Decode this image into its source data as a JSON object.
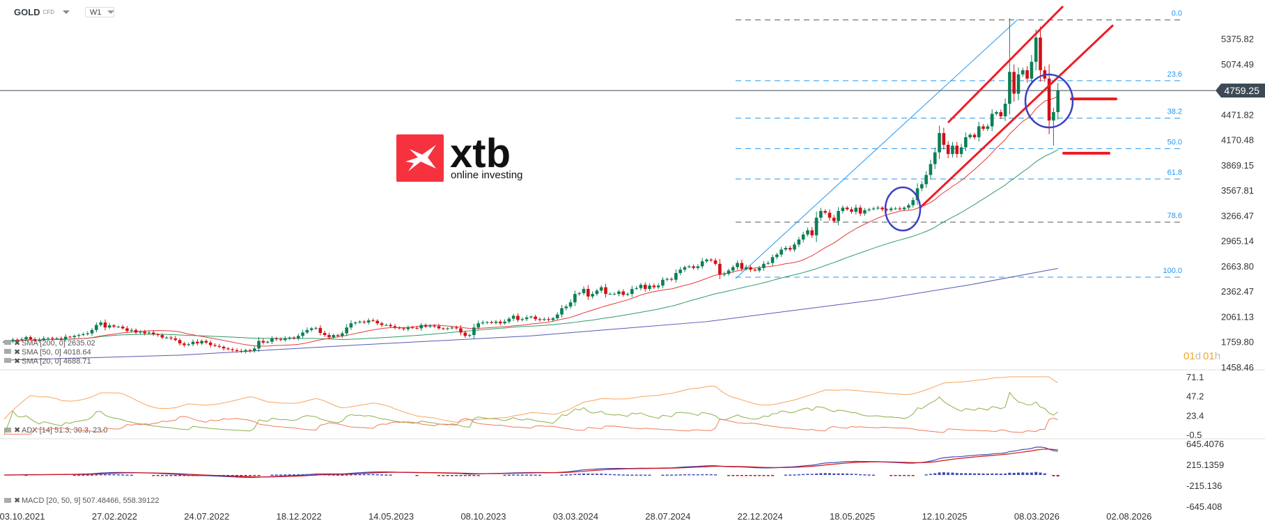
{
  "header": {
    "symbol": "GOLD",
    "instrument_type": "CFD",
    "timeframe": "W1"
  },
  "logo": {
    "brand": "xtb",
    "tagline": "online investing"
  },
  "countdown": {
    "days": "01",
    "d": "d",
    "hours": "01",
    "h": "h"
  },
  "colors": {
    "up": "#0b7f56",
    "down": "#d40f14",
    "sma20": "#e53935",
    "sma50": "#2e9a68",
    "sma200": "#5559b5",
    "fib": "#2196f3",
    "annotation_red": "#ee1c25",
    "annotation_blue": "#3b3fc4",
    "countdown": "#f5a623",
    "adx": "#f7a35c",
    "plus_di": "#8bb04a",
    "minus_di": "#f07a5a",
    "macd": "#3f4bb5",
    "signal": "#d40f14"
  },
  "chart_data": [
    {
      "type": "candlestick",
      "title": "GOLD",
      "timeframe": "W1",
      "x_tick_labels": [
        "03.10.2021",
        "27.02.2022",
        "24.07.2022",
        "18.12.2022",
        "14.05.2023",
        "08.10.2023",
        "03.03.2024",
        "28.07.2024",
        "22.12.2024",
        "18.05.2025",
        "12.10.2025",
        "08.03.2026",
        "02.08.2026"
      ],
      "y_tick_labels": [
        "5375.82",
        "5074.49",
        "4759.25",
        "4471.82",
        "4170.48",
        "3869.15",
        "3567.81",
        "3266.47",
        "2965.14",
        "2663.80",
        "2362.47",
        "2061.13",
        "1759.80",
        "1458.46"
      ],
      "ylim": [
        1458.46,
        5375.82
      ],
      "current_price": "4759.25",
      "weekly_close": [
        1760,
        1765,
        1785,
        1782,
        1790,
        1815,
        1790,
        1770,
        1785,
        1800,
        1805,
        1795,
        1800,
        1790,
        1820,
        1815,
        1830,
        1840,
        1850,
        1860,
        1900,
        1960,
        1990,
        1930,
        1955,
        1940,
        1940,
        1920,
        1890,
        1900,
        1870,
        1880,
        1860,
        1870,
        1850,
        1840,
        1810,
        1810,
        1800,
        1780,
        1740,
        1720,
        1730,
        1760,
        1740,
        1770,
        1750,
        1720,
        1710,
        1700,
        1680,
        1670,
        1660,
        1650,
        1640,
        1660,
        1650,
        1680,
        1770,
        1750,
        1760,
        1800,
        1790,
        1780,
        1800,
        1810,
        1800,
        1830,
        1870,
        1900,
        1920,
        1925,
        1865,
        1840,
        1815,
        1840,
        1830,
        1860,
        1930,
        1980,
        1990,
        2000,
        1990,
        2015,
        2010,
        1980,
        1960,
        1960,
        1945,
        1930,
        1920,
        1910,
        1930,
        1925,
        1920,
        1960,
        1940,
        1950,
        1945,
        1920,
        1915,
        1920,
        1930,
        1920,
        1870,
        1830,
        1840,
        1930,
        1980,
        1990,
        1995,
        1985,
        2000,
        1980,
        2000,
        2035,
        2070,
        2020,
        2030,
        2050,
        2060,
        2030,
        2020,
        2030,
        2020,
        2040,
        2085,
        2160,
        2180,
        2230,
        2330,
        2340,
        2390,
        2300,
        2330,
        2370,
        2410,
        2330,
        2330,
        2330,
        2360,
        2320,
        2330,
        2390,
        2400,
        2440,
        2390,
        2430,
        2410,
        2430,
        2500,
        2510,
        2500,
        2580,
        2620,
        2650,
        2660,
        2640,
        2660,
        2720,
        2740,
        2730,
        2690,
        2560,
        2570,
        2610,
        2650,
        2700,
        2630,
        2650,
        2620,
        2610,
        2640,
        2690,
        2700,
        2770,
        2800,
        2860,
        2880,
        2860,
        2920,
        2980,
        3040,
        3090,
        3030,
        3240,
        3320,
        3300,
        3240,
        3200,
        3320,
        3360,
        3340,
        3310,
        3360,
        3290,
        3330,
        3340,
        3350,
        3360,
        3340,
        3330,
        3350,
        3350,
        3340,
        3360,
        3390,
        3450,
        3590,
        3640,
        3750,
        3880,
        4020,
        4250,
        4110,
        4000,
        4100,
        4000,
        4080,
        4200,
        4230,
        4200,
        4330,
        4300,
        4330,
        4480,
        4500,
        4450,
        4600,
        4980,
        4720,
        4950,
        5000,
        4900,
        5100,
        5390,
        5000,
        4900,
        4400,
        4500,
        4760
      ],
      "notable_extremes": [
        {
          "week_index": 229,
          "high": 5620
        },
        {
          "week_index": 239,
          "low": 4100
        }
      ],
      "sma200_path": [
        [
          0,
          1540
        ],
        [
          40,
          1600
        ],
        [
          80,
          1720
        ],
        [
          120,
          1830
        ],
        [
          160,
          2000
        ],
        [
          200,
          2270
        ],
        [
          220,
          2440
        ],
        [
          240,
          2635
        ]
      ],
      "indicators_legend": [
        {
          "label": "SMA [200, 0] 2635.02"
        },
        {
          "label": "SMA [50, 0] 4018.64"
        },
        {
          "label": "SMA [20, 0] 4688.71"
        }
      ],
      "fibonacci": [
        {
          "label": "0.0",
          "price": 5600
        },
        {
          "label": "23.6",
          "price": 4875
        },
        {
          "label": "38.2",
          "price": 4428
        },
        {
          "label": "50.0",
          "price": 4065
        },
        {
          "label": "61.8",
          "price": 3702
        },
        {
          "label": "78.6",
          "price": 3187
        },
        {
          "label": "100.0",
          "price": 2530
        }
      ]
    },
    {
      "type": "line",
      "title": "ADX [14] 51.3, 30.3, 23.0",
      "y_tick_labels": [
        "71.1",
        "47.2",
        "23.4",
        "-0.5"
      ],
      "ylim": [
        -0.5,
        71.1
      ],
      "last_values": {
        "adx": 51.3,
        "plus_di": 30.3,
        "minus_di": 23.0
      }
    },
    {
      "type": "line",
      "title": "MACD [20, 50, 9] 507.48466, 558.39122",
      "y_tick_labels": [
        "645.4076",
        "215.1359",
        "-215.136",
        "-645.408"
      ],
      "ylim": [
        -645.408,
        645.4076
      ],
      "last_values": {
        "macd": 507.48466,
        "signal": 558.39122
      }
    }
  ]
}
